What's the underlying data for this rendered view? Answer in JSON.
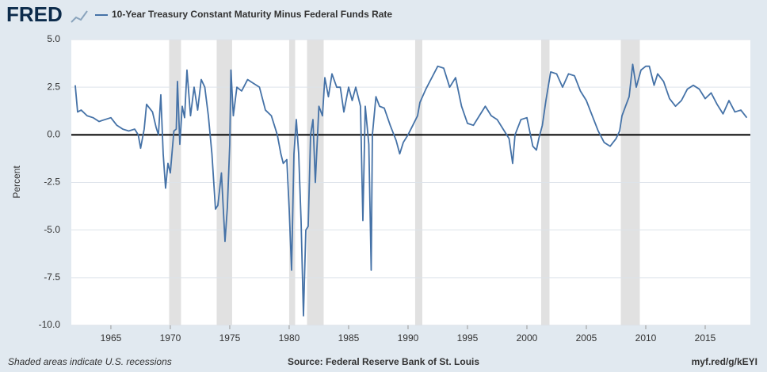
{
  "logo": "FRED",
  "chart_data": {
    "type": "line",
    "y_label": "Percent",
    "footer_note": "Shaded areas indicate U.S. recessions",
    "source": "Source: Federal Reserve Bank of St. Louis",
    "short_url": "myf.red/g/kEYI",
    "xlim": [
      1961.67,
      2018.8
    ],
    "xticks": [
      1965,
      1970,
      1975,
      1980,
      1985,
      1990,
      1995,
      2000,
      2005,
      2010,
      2015
    ],
    "ylim": [
      -10,
      5
    ],
    "yticks": [
      {
        "value": -10,
        "label": "-10.0"
      },
      -7.5,
      {
        "value": -5,
        "label": "-5.0"
      },
      -2.5,
      {
        "value": 0,
        "label": "0.0"
      },
      2.5,
      {
        "value": 5,
        "label": "5.0"
      }
    ],
    "grid": true,
    "zero_line": true,
    "recession_color": "#e1e1e1",
    "recessions": [
      [
        1969.9,
        1970.9
      ],
      [
        1973.9,
        1975.2
      ],
      [
        1980.0,
        1980.5
      ],
      [
        1981.5,
        1982.9
      ],
      [
        1990.6,
        1991.2
      ],
      [
        2001.2,
        2001.9
      ],
      [
        2007.9,
        2009.5
      ]
    ],
    "x": [
      1962.0,
      1962.2,
      1962.5,
      1963.0,
      1963.5,
      1964.0,
      1964.5,
      1965.0,
      1965.5,
      1966.0,
      1966.5,
      1967.0,
      1967.3,
      1967.5,
      1967.8,
      1968.0,
      1968.5,
      1968.8,
      1969.0,
      1969.2,
      1969.4,
      1969.6,
      1969.8,
      1970.0,
      1970.3,
      1970.5,
      1970.6,
      1970.8,
      1971.0,
      1971.2,
      1971.4,
      1971.7,
      1972.0,
      1972.3,
      1972.6,
      1972.9,
      1973.2,
      1973.5,
      1973.8,
      1974.0,
      1974.3,
      1974.6,
      1974.8,
      1975.0,
      1975.1,
      1975.3,
      1975.6,
      1976.0,
      1976.5,
      1977.0,
      1977.5,
      1978.0,
      1978.5,
      1979.0,
      1979.3,
      1979.5,
      1979.8,
      1980.0,
      1980.2,
      1980.4,
      1980.6,
      1980.8,
      1981.0,
      1981.2,
      1981.4,
      1981.6,
      1981.8,
      1982.0,
      1982.2,
      1982.5,
      1982.8,
      1983.0,
      1983.3,
      1983.6,
      1984.0,
      1984.3,
      1984.6,
      1985.0,
      1985.3,
      1985.6,
      1986.0,
      1986.2,
      1986.4,
      1986.7,
      1986.9,
      1987.0,
      1987.3,
      1987.6,
      1988.0,
      1988.5,
      1989.0,
      1989.3,
      1989.6,
      1990.0,
      1990.4,
      1990.8,
      1991.0,
      1991.5,
      1992.0,
      1992.5,
      1993.0,
      1993.5,
      1994.0,
      1994.5,
      1995.0,
      1995.5,
      1996.0,
      1996.5,
      1997.0,
      1997.5,
      1998.0,
      1998.5,
      1998.8,
      1999.0,
      1999.5,
      2000.0,
      2000.5,
      2000.8,
      2001.0,
      2001.3,
      2001.6,
      2002.0,
      2002.5,
      2003.0,
      2003.5,
      2004.0,
      2004.5,
      2005.0,
      2005.5,
      2006.0,
      2006.5,
      2007.0,
      2007.5,
      2007.8,
      2008.0,
      2008.3,
      2008.6,
      2008.9,
      2009.2,
      2009.6,
      2010.0,
      2010.3,
      2010.7,
      2011.0,
      2011.5,
      2012.0,
      2012.5,
      2013.0,
      2013.5,
      2014.0,
      2014.5,
      2015.0,
      2015.5,
      2016.0,
      2016.5,
      2017.0,
      2017.5,
      2018.0,
      2018.5
    ],
    "series": [
      {
        "name": "10-Year Treasury Constant Maturity Minus Federal Funds Rate",
        "color": "#4572a7",
        "values": [
          2.6,
          1.2,
          1.3,
          1.0,
          0.9,
          0.7,
          0.8,
          0.9,
          0.5,
          0.3,
          0.2,
          0.3,
          0.0,
          -0.7,
          0.3,
          1.6,
          1.2,
          0.4,
          0.0,
          2.1,
          -1.0,
          -2.8,
          -1.5,
          -2.0,
          0.2,
          0.3,
          2.8,
          -0.5,
          1.5,
          0.9,
          3.4,
          1.0,
          2.5,
          1.3,
          2.9,
          2.5,
          1.0,
          -1.0,
          -3.9,
          -3.7,
          -2.0,
          -5.6,
          -3.8,
          -0.5,
          3.4,
          1.0,
          2.5,
          2.3,
          2.9,
          2.7,
          2.5,
          1.3,
          1.0,
          0.0,
          -1.0,
          -1.5,
          -1.3,
          -3.9,
          -7.1,
          -1.0,
          0.8,
          -1.0,
          -4.5,
          -9.5,
          -5.0,
          -4.8,
          0.0,
          0.8,
          -2.5,
          1.5,
          1.0,
          3.0,
          2.0,
          3.2,
          2.5,
          2.5,
          1.2,
          2.5,
          1.8,
          2.5,
          1.5,
          -4.5,
          1.5,
          -0.5,
          -7.1,
          0.0,
          2.0,
          1.5,
          1.4,
          0.5,
          -0.3,
          -1.0,
          -0.4,
          0.0,
          0.5,
          1.0,
          1.7,
          2.4,
          3.0,
          3.6,
          3.5,
          2.5,
          3.0,
          1.5,
          0.6,
          0.5,
          1.0,
          1.5,
          1.0,
          0.8,
          0.3,
          -0.2,
          -1.5,
          0.0,
          0.8,
          0.9,
          -0.6,
          -0.8,
          -0.2,
          0.5,
          1.8,
          3.3,
          3.2,
          2.5,
          3.2,
          3.1,
          2.3,
          1.8,
          1.0,
          0.2,
          -0.4,
          -0.6,
          -0.2,
          0.2,
          1.0,
          1.5,
          2.0,
          3.7,
          2.5,
          3.4,
          3.6,
          3.6,
          2.6,
          3.2,
          2.8,
          1.9,
          1.5,
          1.8,
          2.4,
          2.6,
          2.4,
          1.9,
          2.2,
          1.6,
          1.1,
          1.8,
          1.2,
          1.3,
          0.9
        ]
      }
    ]
  }
}
